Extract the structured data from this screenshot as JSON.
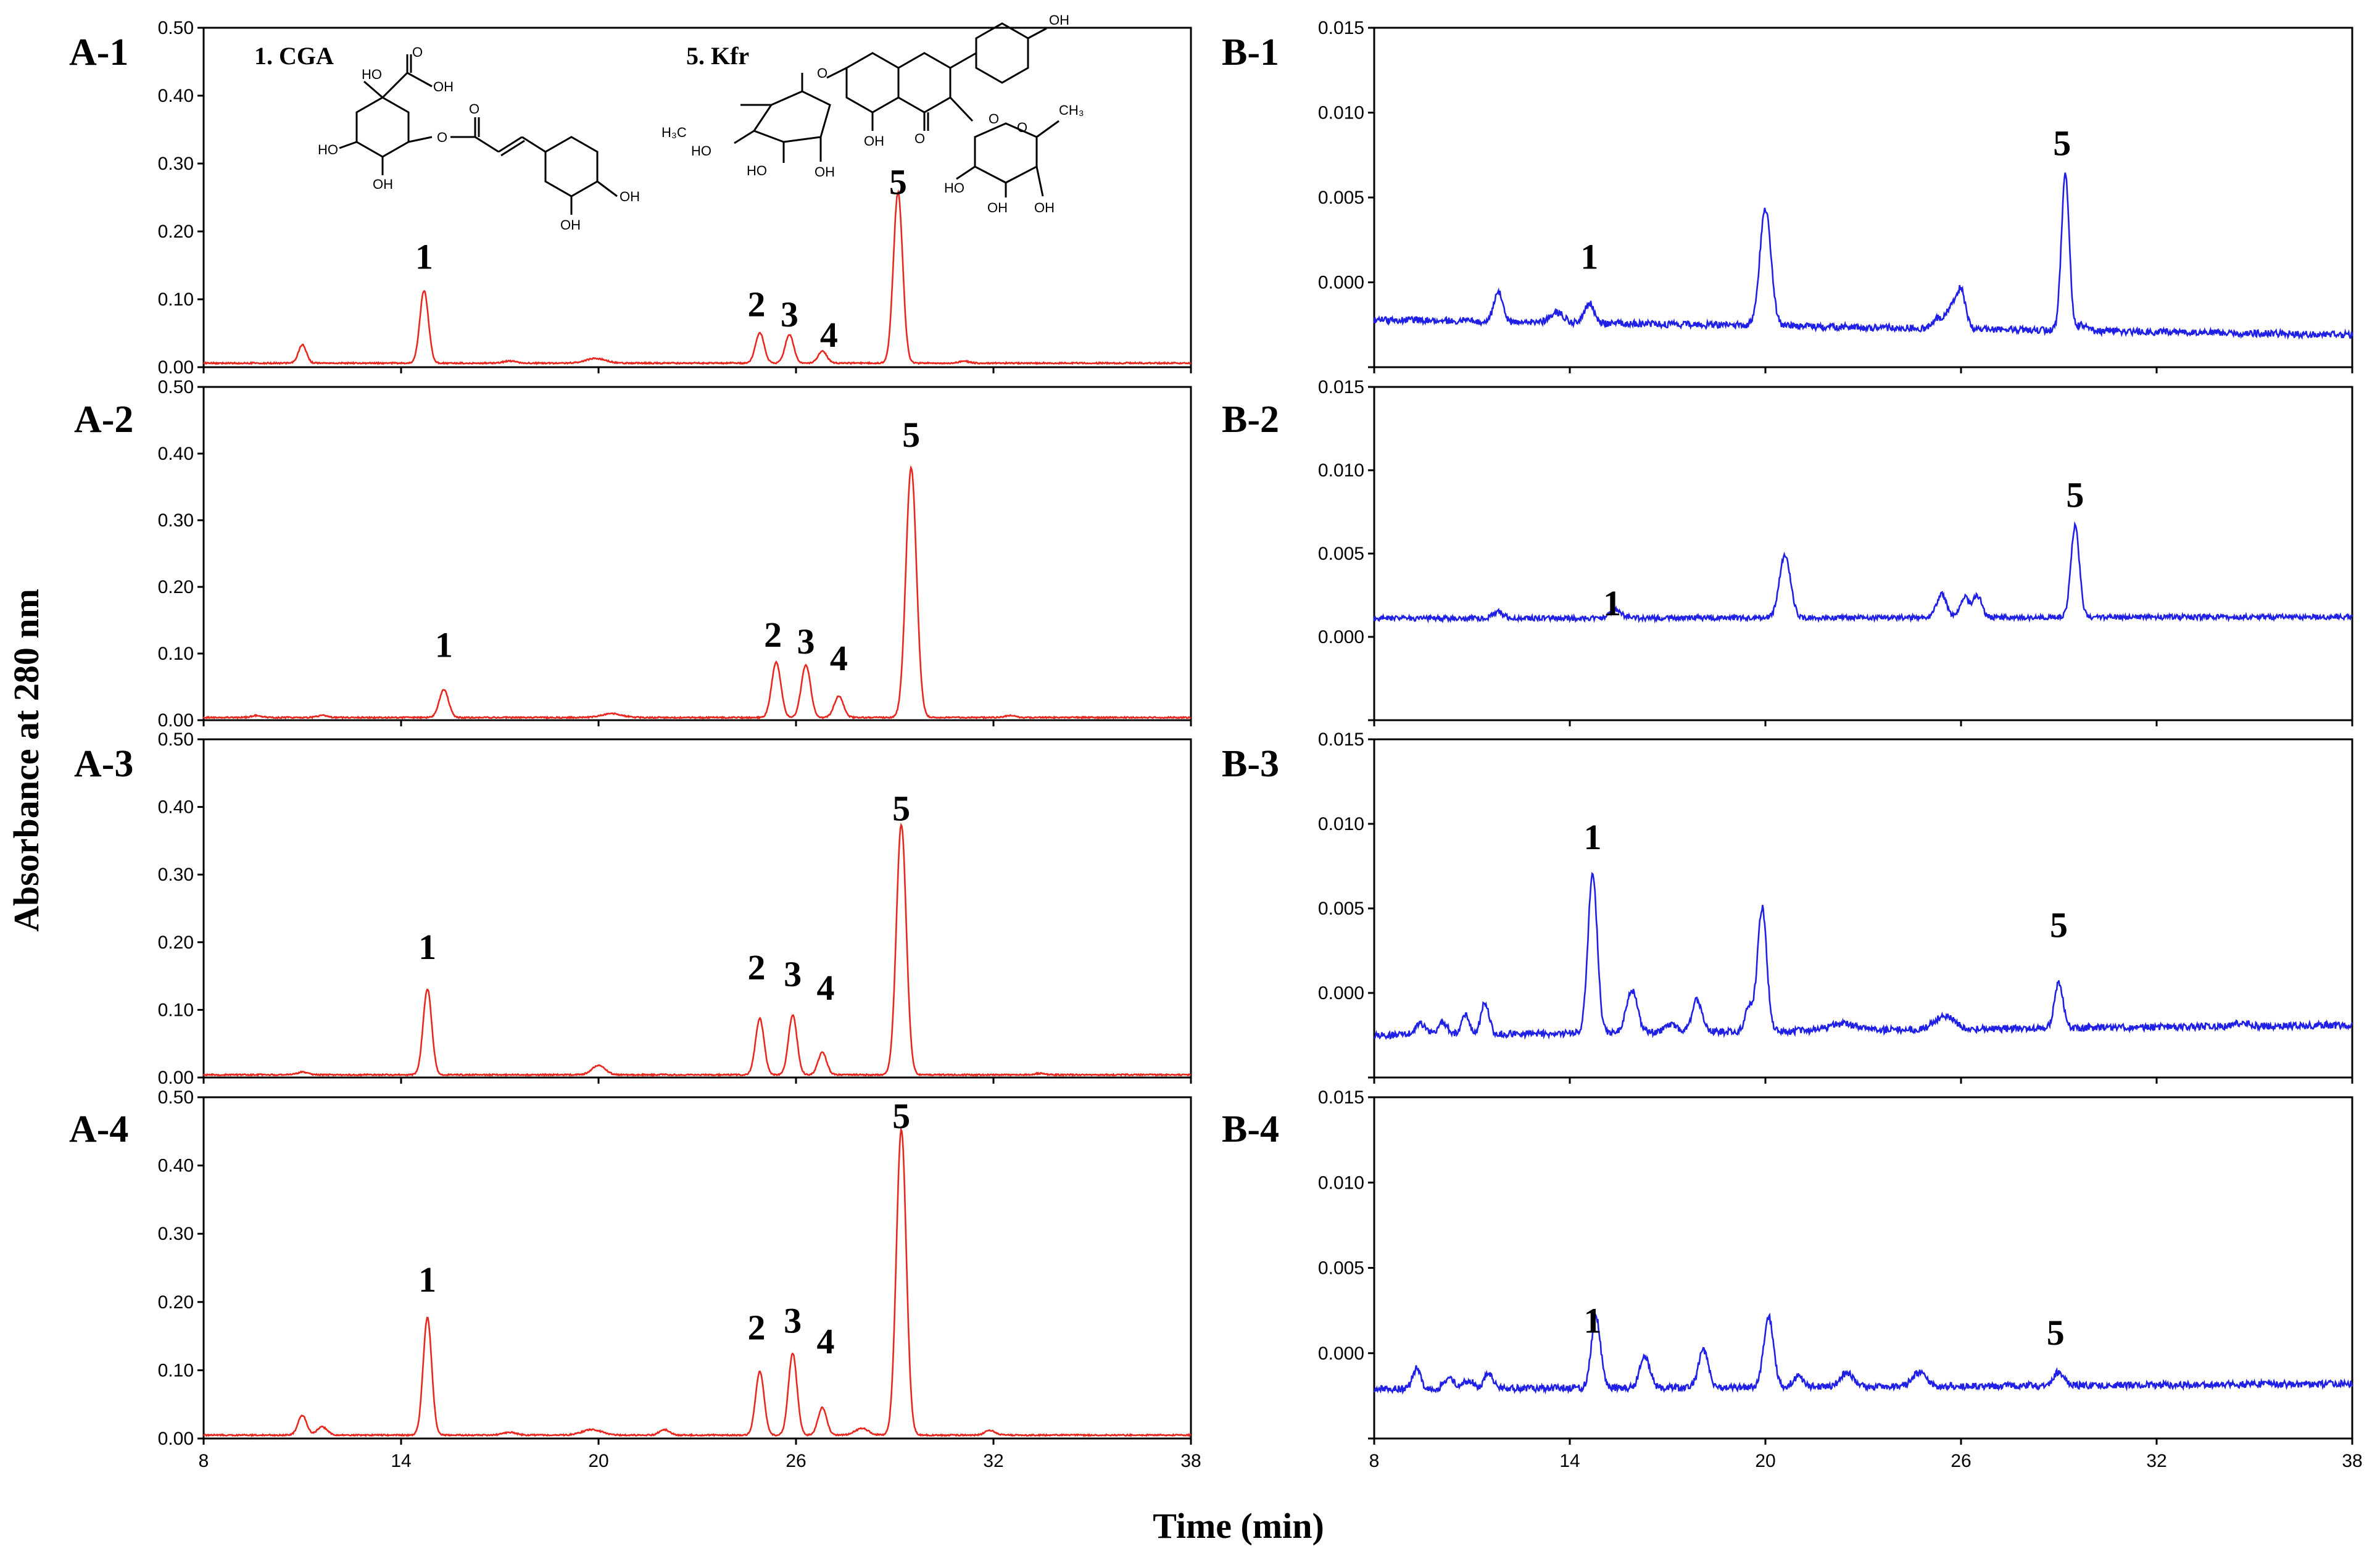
{
  "figure": {
    "ylabel": "Absorbance at 280 nm",
    "xlabel": "Time (min)"
  },
  "structures": {
    "cga_label": "1. CGA",
    "kfr_label": "5. Kfr"
  },
  "chart_data": [
    {
      "id": "A-1",
      "label": "A-1",
      "type": "line",
      "color": "#e8281e",
      "xlim": [
        8,
        38
      ],
      "ylim": [
        0,
        0.5
      ],
      "xticks": [
        8,
        14,
        20,
        26,
        32,
        38
      ],
      "yticks": [
        "0.00",
        "0.10",
        "0.20",
        "0.30",
        "0.40",
        "0.50"
      ],
      "baseline": 0.005,
      "peaks": [
        {
          "t": 11.0,
          "h": 0.027,
          "w": 0.12
        },
        {
          "t": 14.7,
          "h": 0.107,
          "w": 0.13
        },
        {
          "t": 17.3,
          "h": 0.003,
          "w": 0.2
        },
        {
          "t": 19.9,
          "h": 0.007,
          "w": 0.3
        },
        {
          "t": 24.9,
          "h": 0.045,
          "w": 0.13
        },
        {
          "t": 25.8,
          "h": 0.042,
          "w": 0.13
        },
        {
          "t": 26.8,
          "h": 0.018,
          "w": 0.13
        },
        {
          "t": 29.1,
          "h": 0.252,
          "w": 0.14
        },
        {
          "t": 31.1,
          "h": 0.003,
          "w": 0.15
        }
      ],
      "labels": [
        {
          "text": "1",
          "t": 14.7,
          "v": 0.145
        },
        {
          "text": "2",
          "t": 24.8,
          "v": 0.075
        },
        {
          "text": "3",
          "t": 25.8,
          "v": 0.06
        },
        {
          "text": "4",
          "t": 27.0,
          "v": 0.03
        },
        {
          "text": "5",
          "t": 29.1,
          "v": 0.255
        }
      ]
    },
    {
      "id": "A-2",
      "label": "A-2",
      "type": "line",
      "color": "#e8281e",
      "xlim": [
        8,
        38
      ],
      "ylim": [
        0,
        0.5
      ],
      "xticks": [
        8,
        14,
        20,
        26,
        32,
        38
      ],
      "yticks": [
        "0.00",
        "0.10",
        "0.20",
        "0.30",
        "0.40",
        "0.50"
      ],
      "baseline": 0.003,
      "peaks": [
        {
          "t": 9.6,
          "h": 0.003,
          "w": 0.15
        },
        {
          "t": 11.6,
          "h": 0.003,
          "w": 0.15
        },
        {
          "t": 15.3,
          "h": 0.042,
          "w": 0.14
        },
        {
          "t": 20.4,
          "h": 0.006,
          "w": 0.3
        },
        {
          "t": 25.4,
          "h": 0.083,
          "w": 0.14
        },
        {
          "t": 26.3,
          "h": 0.079,
          "w": 0.14
        },
        {
          "t": 27.3,
          "h": 0.032,
          "w": 0.14
        },
        {
          "t": 29.5,
          "h": 0.375,
          "w": 0.16
        },
        {
          "t": 32.5,
          "h": 0.003,
          "w": 0.15
        }
      ],
      "labels": [
        {
          "text": "1",
          "t": 15.3,
          "v": 0.095
        },
        {
          "text": "2",
          "t": 25.3,
          "v": 0.11
        },
        {
          "text": "3",
          "t": 26.3,
          "v": 0.1
        },
        {
          "text": "4",
          "t": 27.3,
          "v": 0.075
        },
        {
          "text": "5",
          "t": 29.5,
          "v": 0.41
        }
      ]
    },
    {
      "id": "A-3",
      "label": "A-3",
      "type": "line",
      "color": "#e8281e",
      "xlim": [
        8,
        38
      ],
      "ylim": [
        0,
        0.5
      ],
      "xticks": [
        8,
        14,
        20,
        26,
        32,
        38
      ],
      "yticks": [
        "0.00",
        "0.10",
        "0.20",
        "0.30",
        "0.40",
        "0.50"
      ],
      "baseline": 0.003,
      "peaks": [
        {
          "t": 11.0,
          "h": 0.004,
          "w": 0.15
        },
        {
          "t": 14.8,
          "h": 0.127,
          "w": 0.13
        },
        {
          "t": 20.0,
          "h": 0.014,
          "w": 0.2
        },
        {
          "t": 24.9,
          "h": 0.083,
          "w": 0.13
        },
        {
          "t": 25.9,
          "h": 0.088,
          "w": 0.13
        },
        {
          "t": 26.8,
          "h": 0.033,
          "w": 0.13
        },
        {
          "t": 29.2,
          "h": 0.37,
          "w": 0.15
        },
        {
          "t": 33.4,
          "h": 0.002,
          "w": 0.15
        }
      ],
      "labels": [
        {
          "text": "1",
          "t": 14.8,
          "v": 0.175
        },
        {
          "text": "2",
          "t": 24.8,
          "v": 0.145
        },
        {
          "text": "3",
          "t": 25.9,
          "v": 0.135
        },
        {
          "text": "4",
          "t": 26.9,
          "v": 0.115
        },
        {
          "text": "5",
          "t": 29.2,
          "v": 0.38
        }
      ]
    },
    {
      "id": "A-4",
      "label": "A-4",
      "type": "line",
      "color": "#e8281e",
      "xlim": [
        8,
        38
      ],
      "ylim": [
        0,
        0.5
      ],
      "xticks": [
        8,
        14,
        20,
        26,
        32,
        38
      ],
      "yticks": [
        "0.00",
        "0.10",
        "0.20",
        "0.30",
        "0.40",
        "0.50"
      ],
      "baseline": 0.004,
      "peaks": [
        {
          "t": 11.0,
          "h": 0.029,
          "w": 0.13
        },
        {
          "t": 11.6,
          "h": 0.012,
          "w": 0.15
        },
        {
          "t": 14.8,
          "h": 0.172,
          "w": 0.13
        },
        {
          "t": 17.3,
          "h": 0.004,
          "w": 0.2
        },
        {
          "t": 19.8,
          "h": 0.008,
          "w": 0.3
        },
        {
          "t": 22.0,
          "h": 0.008,
          "w": 0.15
        },
        {
          "t": 24.9,
          "h": 0.093,
          "w": 0.13
        },
        {
          "t": 25.9,
          "h": 0.12,
          "w": 0.13
        },
        {
          "t": 26.8,
          "h": 0.04,
          "w": 0.13
        },
        {
          "t": 28.0,
          "h": 0.01,
          "w": 0.2
        },
        {
          "t": 29.2,
          "h": 0.448,
          "w": 0.15
        },
        {
          "t": 31.9,
          "h": 0.007,
          "w": 0.15
        }
      ],
      "labels": [
        {
          "text": "1",
          "t": 14.8,
          "v": 0.215
        },
        {
          "text": "2",
          "t": 24.8,
          "v": 0.145
        },
        {
          "text": "3",
          "t": 25.9,
          "v": 0.155
        },
        {
          "text": "4",
          "t": 26.9,
          "v": 0.125
        },
        {
          "text": "5",
          "t": 29.2,
          "v": 0.455
        }
      ]
    },
    {
      "id": "B-1",
      "label": "B-1",
      "type": "line",
      "color": "#1f1fe6",
      "xlim": [
        8,
        38
      ],
      "ylim": [
        -0.005,
        0.015
      ],
      "xticks": [
        8,
        14,
        20,
        26,
        32,
        38
      ],
      "yticks": [
        "",
        "0.000",
        "0.005",
        "0.010",
        "0.015"
      ],
      "baseline_start": -0.0022,
      "baseline_end": -0.0031,
      "noise": 0.0002,
      "peaks": [
        {
          "t": 11.8,
          "h": 0.0018,
          "w": 0.13
        },
        {
          "t": 13.6,
          "h": 0.0006,
          "w": 0.2
        },
        {
          "t": 14.6,
          "h": 0.0012,
          "w": 0.15
        },
        {
          "t": 20.0,
          "h": 0.0069,
          "w": 0.17
        },
        {
          "t": 25.3,
          "h": 0.0006,
          "w": 0.15
        },
        {
          "t": 25.7,
          "h": 0.0012,
          "w": 0.15
        },
        {
          "t": 26.0,
          "h": 0.0022,
          "w": 0.14
        },
        {
          "t": 29.2,
          "h": 0.0092,
          "w": 0.12
        },
        {
          "t": 29.7,
          "h": 0.0004,
          "w": 0.12
        }
      ],
      "labels": [
        {
          "text": "1",
          "t": 14.6,
          "v": 0.0008
        },
        {
          "text": "5",
          "t": 29.1,
          "v": 0.0075
        }
      ]
    },
    {
      "id": "B-2",
      "label": "B-2",
      "type": "line",
      "color": "#1f1fe6",
      "xlim": [
        8,
        38
      ],
      "ylim": [
        -0.005,
        0.015
      ],
      "xticks": [
        8,
        14,
        20,
        26,
        32,
        38
      ],
      "yticks": [
        "",
        "0.000",
        "0.005",
        "0.010",
        "0.015"
      ],
      "baseline_start": 0.0011,
      "baseline_end": 0.0012,
      "noise": 0.00015,
      "peaks": [
        {
          "t": 11.8,
          "h": 0.0004,
          "w": 0.15
        },
        {
          "t": 15.4,
          "h": 0.0005,
          "w": 0.18
        },
        {
          "t": 20.6,
          "h": 0.0038,
          "w": 0.17
        },
        {
          "t": 25.4,
          "h": 0.0014,
          "w": 0.15
        },
        {
          "t": 26.1,
          "h": 0.0012,
          "w": 0.14
        },
        {
          "t": 26.5,
          "h": 0.0013,
          "w": 0.14
        },
        {
          "t": 29.5,
          "h": 0.0055,
          "w": 0.13
        }
      ],
      "labels": [
        {
          "text": "1",
          "t": 15.3,
          "v": 0.0013
        },
        {
          "text": "5",
          "t": 29.5,
          "v": 0.0078
        }
      ]
    },
    {
      "id": "B-3",
      "label": "B-3",
      "type": "line",
      "color": "#1f1fe6",
      "xlim": [
        8,
        38
      ],
      "ylim": [
        -0.005,
        0.015
      ],
      "xticks": [
        8,
        14,
        20,
        26,
        32,
        38
      ],
      "yticks": [
        "",
        "0.000",
        "0.005",
        "0.010",
        "0.015"
      ],
      "baseline_start": -0.0025,
      "baseline_end": -0.0019,
      "noise": 0.0002,
      "peaks": [
        {
          "t": 9.4,
          "h": 0.0007,
          "w": 0.15
        },
        {
          "t": 10.1,
          "h": 0.0007,
          "w": 0.15
        },
        {
          "t": 10.8,
          "h": 0.0011,
          "w": 0.12
        },
        {
          "t": 11.4,
          "h": 0.0019,
          "w": 0.12
        },
        {
          "t": 14.7,
          "h": 0.0095,
          "w": 0.14
        },
        {
          "t": 15.9,
          "h": 0.0025,
          "w": 0.17
        },
        {
          "t": 17.1,
          "h": 0.0004,
          "w": 0.2
        },
        {
          "t": 17.9,
          "h": 0.0019,
          "w": 0.15
        },
        {
          "t": 19.5,
          "h": 0.0015,
          "w": 0.12
        },
        {
          "t": 19.9,
          "h": 0.0073,
          "w": 0.14
        },
        {
          "t": 22.4,
          "h": 0.0004,
          "w": 0.4
        },
        {
          "t": 25.5,
          "h": 0.0008,
          "w": 0.3
        },
        {
          "t": 29.0,
          "h": 0.0027,
          "w": 0.13
        },
        {
          "t": 34.6,
          "h": 0.0002,
          "w": 0.2
        }
      ],
      "labels": [
        {
          "text": "1",
          "t": 14.7,
          "v": 0.0085
        },
        {
          "text": "5",
          "t": 29.0,
          "v": 0.0033
        }
      ]
    },
    {
      "id": "B-4",
      "label": "B-4",
      "type": "line",
      "color": "#1f1fe6",
      "xlim": [
        8,
        38
      ],
      "ylim": [
        -0.005,
        0.015
      ],
      "xticks": [
        8,
        14,
        20,
        26,
        32,
        38
      ],
      "yticks": [
        "",
        "0.000",
        "0.005",
        "0.010",
        "0.015"
      ],
      "baseline_start": -0.0021,
      "baseline_end": -0.0018,
      "noise": 0.0002,
      "peaks": [
        {
          "t": 9.3,
          "h": 0.0012,
          "w": 0.12
        },
        {
          "t": 10.3,
          "h": 0.0006,
          "w": 0.15
        },
        {
          "t": 10.9,
          "h": 0.0005,
          "w": 0.15
        },
        {
          "t": 11.5,
          "h": 0.0009,
          "w": 0.13
        },
        {
          "t": 14.8,
          "h": 0.0042,
          "w": 0.14
        },
        {
          "t": 16.3,
          "h": 0.0018,
          "w": 0.15
        },
        {
          "t": 18.1,
          "h": 0.0022,
          "w": 0.15
        },
        {
          "t": 20.1,
          "h": 0.0041,
          "w": 0.15
        },
        {
          "t": 21.0,
          "h": 0.0006,
          "w": 0.15
        },
        {
          "t": 22.5,
          "h": 0.0008,
          "w": 0.2
        },
        {
          "t": 24.7,
          "h": 0.0008,
          "w": 0.2
        },
        {
          "t": 29.0,
          "h": 0.0008,
          "w": 0.15
        }
      ],
      "labels": [
        {
          "text": "1",
          "t": 14.7,
          "v": 0.0012
        },
        {
          "text": "5",
          "t": 28.9,
          "v": 0.0005
        }
      ]
    }
  ]
}
